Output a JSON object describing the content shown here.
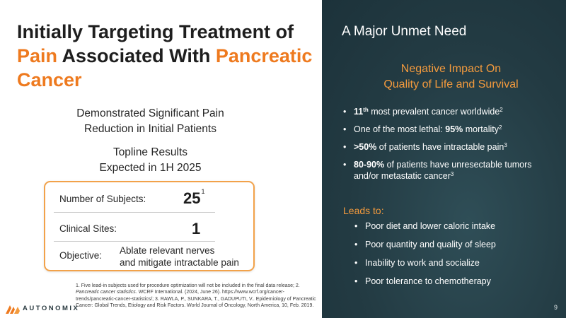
{
  "left": {
    "title_part1": "Initially Targeting Treatment of ",
    "title_orange1": "Pain",
    "title_part2": " Associated With ",
    "title_orange2": "Pancreatic Cancer",
    "sub1_line1": "Demonstrated Significant Pain",
    "sub1_line2": "Reduction in Initial Patients",
    "sub2_line1": "Topline Results",
    "sub2_line2": "Expected in 1H 2025",
    "card": {
      "subjects_label": "Number of Subjects:",
      "subjects_value": "25",
      "subjects_sup": "1",
      "sites_label": "Clinical Sites:",
      "sites_value": "1",
      "objective_label": "Objective:",
      "objective_line1": "Ablate relevant nerves",
      "objective_line2": "and mitigate intractable pain"
    },
    "footnote": {
      "p1": "1. Five lead-in subjects used for procedure optimization will not be included in the final data release; 2. ",
      "p1_italic": "Pancreatic cancer statistics",
      "p2": ". WCRF International. (2024, June 26). https://www.wcrf.org/cancer-trends/pancreatic-cancer-statistics/; 3. RAWLA, P., SUNKARA, T., GADUPUTI, V.. Epidemiology of Pancreatic Cancer: Global Trends, Etiology and Risk Factors. World Journal of Oncology, North America, 10, Feb. 2019."
    },
    "logo_text": "AUTONOMIX"
  },
  "right": {
    "title": "A Major Unmet Need",
    "heading_line1": "Negative Impact On",
    "heading_line2": "Quality of Life and Survival",
    "b1_bold": "11",
    "b1_th": "th",
    "b1_text": "  most prevalent cancer worldwide",
    "b1_sup": "2",
    "b2_text": "One of the most lethal: ",
    "b2_bold": "95%",
    "b2_text2": " mortality",
    "b2_sup": "2",
    "b3_bold": ">50%",
    "b3_text": " of patients have intractable pain",
    "b3_sup": "3",
    "b4_bold": "80-90%",
    "b4_text": " of patients have unresectable tumors and/or metastatic cancer",
    "b4_sup": "3",
    "leads_label": "Leads to:",
    "leads": [
      "Poor diet and lower caloric intake",
      "Poor quantity and quality of sleep",
      "Inability to work and socialize",
      "Poor tolerance to chemotherapy"
    ],
    "page_number": "9"
  },
  "colors": {
    "accent_orange": "#ee7a1f",
    "panel_dark": "#233b43",
    "card_border": "#f2a24a"
  }
}
